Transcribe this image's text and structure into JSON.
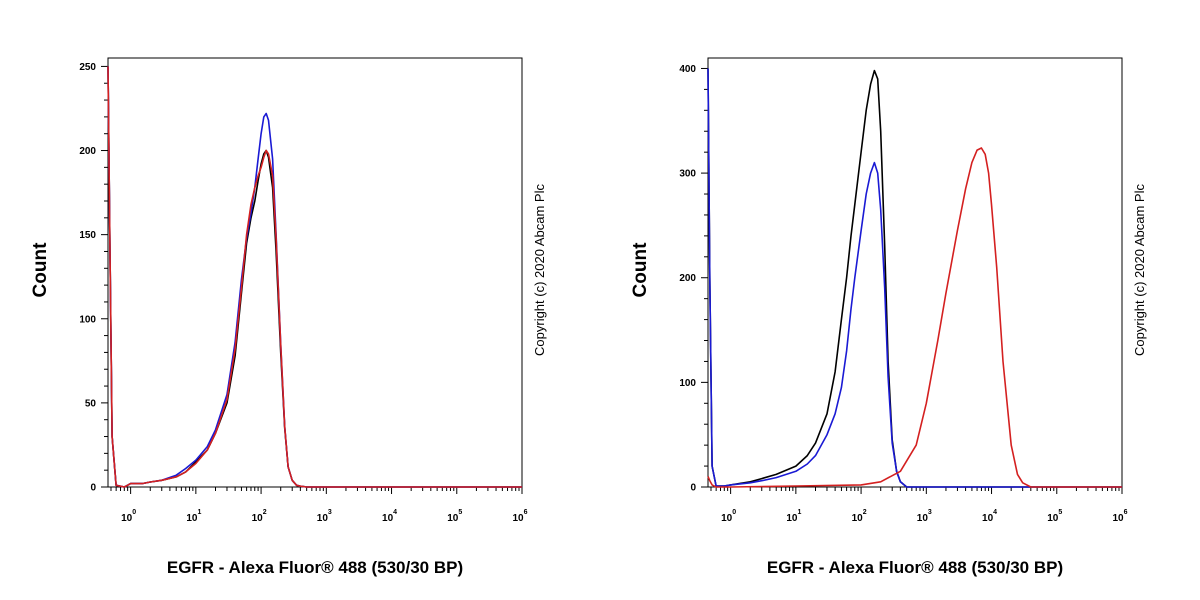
{
  "chart_data": [
    {
      "type": "line",
      "xlabel": "EGFR - Alexa Fluor® 488 (530/30 BP)",
      "ylabel": "Count",
      "x_scale": "log",
      "xlim": [
        0.45,
        1000000
      ],
      "ylim": [
        0,
        255
      ],
      "y_ticks": [
        0,
        50,
        100,
        150,
        200,
        250
      ],
      "x_ticks": [
        "10^0",
        "10^1",
        "10^2",
        "10^3",
        "10^4",
        "10^5",
        "10^6"
      ],
      "grid": false,
      "copyright": "Copyright (c) 2020 Abcam Plc",
      "series": [
        {
          "color": "#000000",
          "x": [
            0.45,
            0.48,
            0.52,
            0.6,
            0.8,
            1,
            1.5,
            2,
            3,
            5,
            7,
            10,
            15,
            20,
            30,
            40,
            50,
            60,
            70,
            80,
            90,
            100,
            110,
            120,
            130,
            150,
            170,
            200,
            230,
            260,
            300,
            350,
            400,
            500,
            1000,
            10000,
            1000000
          ],
          "y": [
            250,
            150,
            30,
            1,
            0,
            2,
            2,
            3,
            4,
            6,
            9,
            15,
            22,
            32,
            50,
            78,
            115,
            145,
            160,
            170,
            182,
            192,
            198,
            200,
            196,
            178,
            140,
            80,
            35,
            12,
            4,
            1,
            0.5,
            0,
            0,
            0,
            0
          ]
        },
        {
          "color": "#1a1ad4",
          "x": [
            0.45,
            0.48,
            0.52,
            0.6,
            0.8,
            1,
            1.5,
            2,
            3,
            5,
            7,
            10,
            15,
            20,
            30,
            40,
            50,
            60,
            70,
            80,
            90,
            100,
            110,
            120,
            130,
            150,
            170,
            200,
            230,
            260,
            300,
            350,
            400,
            500,
            1000,
            10000,
            1000000
          ],
          "y": [
            250,
            150,
            30,
            1,
            0,
            2,
            2,
            3,
            4,
            7,
            11,
            16,
            24,
            34,
            55,
            86,
            123,
            148,
            163,
            178,
            195,
            210,
            220,
            222,
            218,
            195,
            150,
            85,
            36,
            12,
            4,
            1,
            0.5,
            0,
            0,
            0,
            0
          ]
        },
        {
          "color": "#d42020",
          "x": [
            0.45,
            0.48,
            0.52,
            0.6,
            0.8,
            1,
            1.5,
            2,
            3,
            5,
            7,
            10,
            15,
            20,
            30,
            40,
            50,
            60,
            70,
            80,
            90,
            100,
            110,
            120,
            130,
            150,
            170,
            200,
            230,
            260,
            300,
            350,
            400,
            500,
            1000,
            10000,
            1000000
          ],
          "y": [
            250,
            150,
            30,
            1,
            0,
            2,
            2,
            3,
            4,
            6,
            9,
            14,
            22,
            32,
            52,
            82,
            118,
            150,
            168,
            178,
            185,
            190,
            196,
            200,
            198,
            185,
            148,
            85,
            36,
            12,
            4,
            1,
            0.5,
            0,
            0,
            0,
            0
          ]
        }
      ]
    },
    {
      "type": "line",
      "xlabel": "EGFR - Alexa Fluor® 488 (530/30 BP)",
      "ylabel": "Count",
      "x_scale": "log",
      "xlim": [
        0.45,
        1000000
      ],
      "ylim": [
        0,
        410
      ],
      "y_ticks": [
        0,
        100,
        200,
        300,
        400
      ],
      "x_ticks": [
        "10^0",
        "10^1",
        "10^2",
        "10^3",
        "10^4",
        "10^5",
        "10^6"
      ],
      "grid": false,
      "copyright": "Copyright (c) 2020 Abcam Plc",
      "series": [
        {
          "color": "#000000",
          "x": [
            0.45,
            0.48,
            0.52,
            0.6,
            0.8,
            1,
            2,
            3,
            5,
            10,
            15,
            20,
            30,
            40,
            50,
            60,
            70,
            80,
            100,
            120,
            140,
            160,
            180,
            200,
            230,
            260,
            300,
            350,
            400,
            500,
            1000,
            1000000
          ],
          "y": [
            400,
            200,
            20,
            1,
            1,
            2,
            5,
            8,
            12,
            20,
            30,
            42,
            70,
            110,
            160,
            200,
            240,
            270,
            320,
            360,
            385,
            398,
            390,
            340,
            230,
            120,
            45,
            15,
            5,
            0,
            0,
            0
          ]
        },
        {
          "color": "#1a1ad4",
          "x": [
            0.45,
            0.48,
            0.52,
            0.6,
            0.8,
            1,
            2,
            3,
            5,
            10,
            15,
            20,
            30,
            40,
            50,
            60,
            70,
            80,
            100,
            120,
            140,
            160,
            180,
            200,
            230,
            260,
            300,
            350,
            400,
            500,
            1000,
            1000000
          ],
          "y": [
            400,
            200,
            20,
            1,
            1,
            2,
            4,
            6,
            9,
            15,
            22,
            30,
            50,
            70,
            95,
            130,
            170,
            200,
            245,
            280,
            300,
            310,
            300,
            265,
            190,
            105,
            42,
            15,
            5,
            0,
            0,
            0
          ]
        },
        {
          "color": "#d42020",
          "x": [
            0.45,
            0.48,
            0.52,
            0.6,
            1,
            10,
            100,
            200,
            400,
            700,
            1000,
            1500,
            2000,
            3000,
            4000,
            5000,
            6000,
            7000,
            8000,
            9000,
            10000,
            12000,
            15000,
            20000,
            25000,
            30000,
            40000,
            100000,
            1000000
          ],
          "y": [
            10,
            6,
            2,
            0,
            0,
            1,
            2,
            5,
            15,
            40,
            80,
            140,
            185,
            245,
            285,
            310,
            322,
            324,
            318,
            300,
            270,
            210,
            120,
            40,
            12,
            4,
            0,
            0,
            0
          ]
        }
      ]
    }
  ]
}
